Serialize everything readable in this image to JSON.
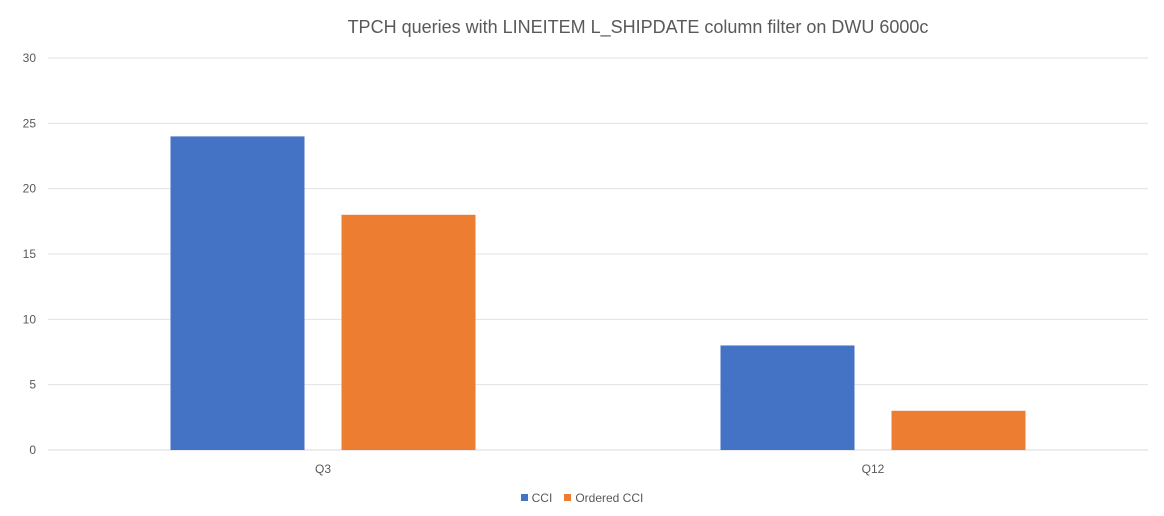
{
  "chart_data": {
    "type": "bar",
    "title": "TPCH queries with LINEITEM L_SHIPDATE column filter on DWU 6000c",
    "categories": [
      "Q3",
      "Q12"
    ],
    "series": [
      {
        "name": "CCI",
        "values": [
          24,
          8
        ],
        "color": "#4472C4"
      },
      {
        "name": "Ordered CCI",
        "values": [
          18,
          3
        ],
        "color": "#ED7D31"
      }
    ],
    "ylim": [
      0,
      30
    ],
    "yticks": [
      0,
      5,
      10,
      15,
      20,
      25,
      30
    ],
    "grid": true,
    "legend": "bottom"
  }
}
